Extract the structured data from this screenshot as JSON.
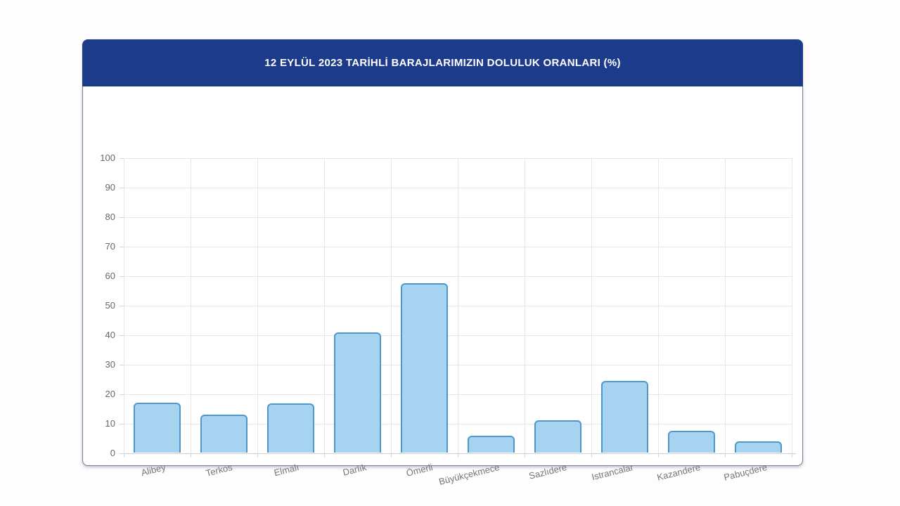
{
  "chart_data": {
    "type": "bar",
    "title": "12 EYLÜL 2023 TARİHLİ BARAJLARIMIZIN DOLULUK ORANLARI (%)",
    "categories": [
      "Alibey",
      "Terkos",
      "Elmalı",
      "Darlık",
      "Ömerli",
      "Büyükçekmece",
      "Sazlıdere",
      "Istrancalar",
      "Kazandere",
      "Pabuçdere"
    ],
    "values": [
      17.0,
      12.8,
      16.7,
      40.7,
      57.4,
      5.6,
      11.0,
      24.3,
      7.4,
      3.9
    ],
    "xlabel": "",
    "ylabel": "",
    "ylim": [
      0,
      100
    ],
    "yticks": [
      0,
      10,
      20,
      30,
      40,
      50,
      60,
      70,
      80,
      90,
      100
    ],
    "grid": true,
    "legend": "none",
    "colors": {
      "bar_fill": "#a6d3f0",
      "bar_border": "#4e97cc",
      "header_background": "#1d3b8b",
      "header_text": "#ffffff",
      "gridline": "#e7e7e7",
      "tick_text": "#666666"
    }
  }
}
